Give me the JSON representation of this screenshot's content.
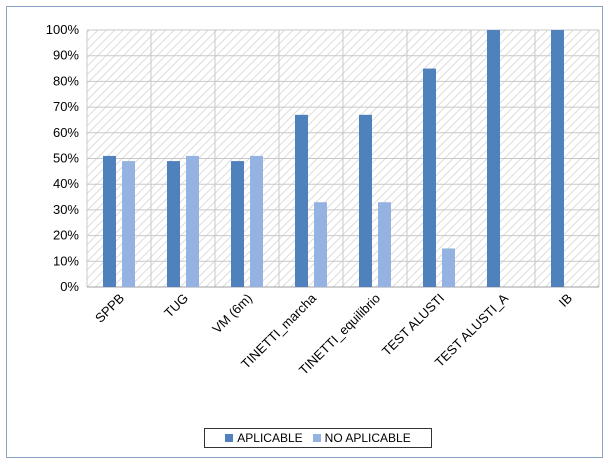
{
  "chart_data": {
    "type": "bar",
    "categories": [
      "SPPB",
      "TUG",
      "VM (6m)",
      "TINETTI_marcha",
      "TINETTI_equilibrio",
      "TEST ALUSTI",
      "TEST ALUSTI_A",
      "IB"
    ],
    "series": [
      {
        "name": "APLICABLE",
        "color": "#4f81bd",
        "values": [
          51,
          49,
          49,
          67,
          67,
          85,
          100,
          100
        ]
      },
      {
        "name": "NO APLICABLE",
        "color": "#95b3e0",
        "values": [
          49,
          51,
          51,
          33,
          33,
          15,
          0,
          0
        ]
      }
    ],
    "y_ticks": [
      "0%",
      "10%",
      "20%",
      "30%",
      "40%",
      "50%",
      "60%",
      "70%",
      "80%",
      "90%",
      "100%"
    ],
    "ylim": [
      0,
      100
    ],
    "grid": true,
    "legend_position": "bottom",
    "title": "",
    "xlabel": "",
    "ylabel": ""
  }
}
